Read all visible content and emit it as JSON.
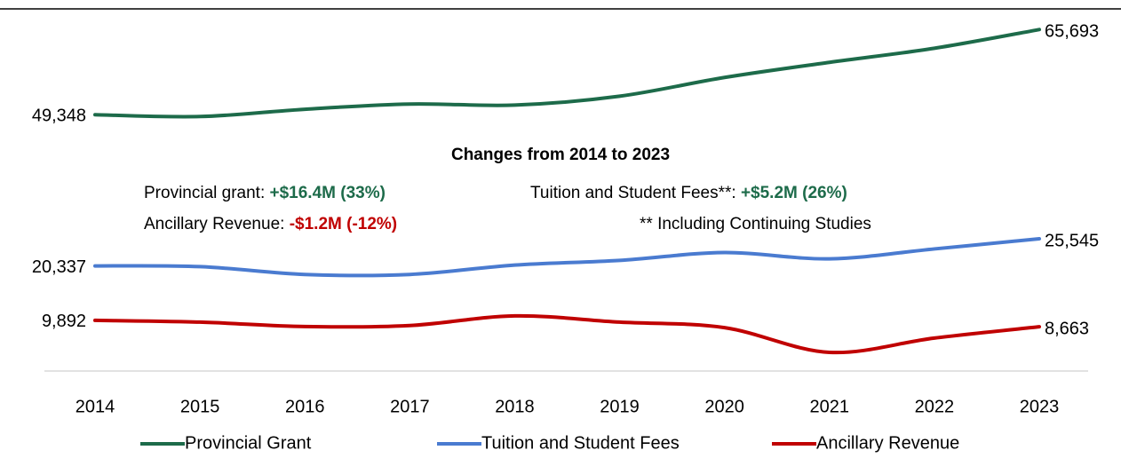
{
  "chart_data": {
    "type": "line",
    "categories": [
      "2014",
      "2015",
      "2016",
      "2017",
      "2018",
      "2019",
      "2020",
      "2021",
      "2022",
      "2023"
    ],
    "ylim": [
      0,
      70000
    ],
    "series": [
      {
        "name": "Provincial Grant",
        "color": "#1d6b4a",
        "values": [
          49348,
          49000,
          50400,
          51400,
          51200,
          52900,
          56500,
          59400,
          62100,
          65693
        ],
        "value_labels": [
          "49,348",
          null,
          null,
          null,
          null,
          null,
          null,
          null,
          null,
          "65,693"
        ]
      },
      {
        "name": "Tuition and Student Fees",
        "color": "#4a7bd0",
        "values": [
          20337,
          20200,
          18700,
          18700,
          20500,
          21400,
          22900,
          21700,
          23600,
          25545
        ],
        "value_labels": [
          "20,337",
          null,
          null,
          null,
          null,
          null,
          null,
          null,
          null,
          "25,545"
        ]
      },
      {
        "name": "Ancillary Revenue",
        "color": "#c00000",
        "values": [
          9892,
          9550,
          8700,
          8900,
          10750,
          9550,
          8500,
          3750,
          6500,
          8663
        ],
        "value_labels": [
          "9,892",
          null,
          null,
          null,
          null,
          null,
          null,
          null,
          null,
          "8,663"
        ]
      }
    ],
    "annotation": {
      "title": "Changes from 2014 to 2023",
      "items": [
        {
          "label": "Provincial grant: ",
          "value": "+$16.4M (33%)",
          "color": "#1d6b4a"
        },
        {
          "label": "Tuition and Student Fees**: ",
          "value": "+$5.2M (26%)",
          "color": "#1d6b4a"
        },
        {
          "label": "Ancillary Revenue: ",
          "value": "-$1.2M (-12%)",
          "color": "#c00000"
        }
      ],
      "footnote": "** Including Continuing Studies"
    }
  }
}
